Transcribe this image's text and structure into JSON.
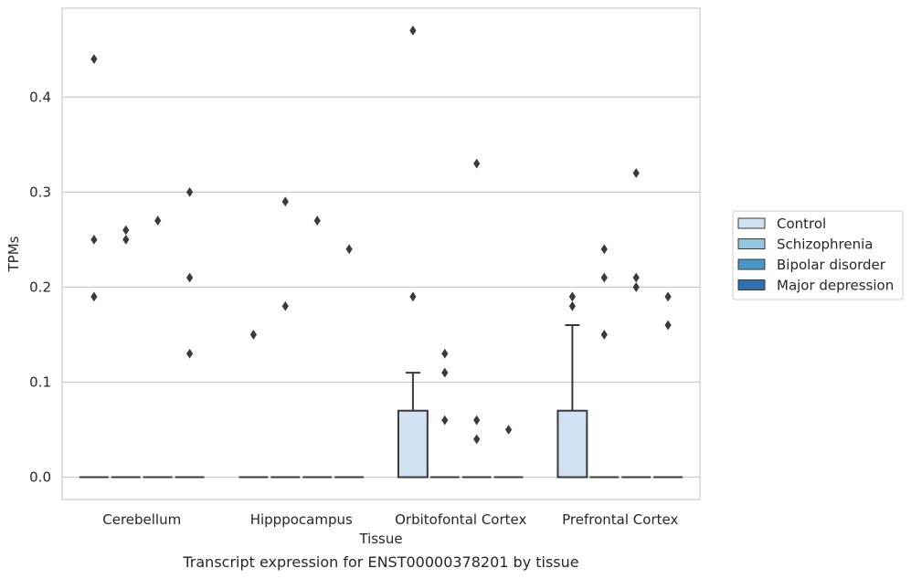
{
  "chart_data": {
    "type": "box",
    "caption": "Transcript expression for ENST00000378201 by tissue",
    "xlabel": "Tissue",
    "ylabel": "TPMs",
    "ylim": [
      -0.0235,
      0.4935
    ],
    "yticks": [
      0.0,
      0.1,
      0.2,
      0.3,
      0.4
    ],
    "ytick_labels": [
      "0.0",
      "0.1",
      "0.2",
      "0.3",
      "0.4"
    ],
    "grid": "horizontal",
    "legend_position": "right",
    "categories": [
      "Cerebellum",
      "Hipppocampus",
      "Orbitofontal Cortex",
      "Prefrontal Cortex"
    ],
    "series": [
      {
        "name": "Control",
        "color": "#d0e1f2",
        "boxes": [
          {
            "q1": 0,
            "median": 0,
            "q3": 0,
            "whisker_low": 0,
            "whisker_high": 0,
            "outliers": [
              0.44,
              0.25,
              0.19
            ]
          },
          {
            "q1": 0,
            "median": 0,
            "q3": 0,
            "whisker_low": 0,
            "whisker_high": 0,
            "outliers": [
              0.15
            ]
          },
          {
            "q1": 0,
            "median": 0,
            "q3": 0.07,
            "whisker_low": 0,
            "whisker_high": 0.11,
            "outliers": [
              0.47,
              0.19
            ]
          },
          {
            "q1": 0,
            "median": 0,
            "q3": 0.07,
            "whisker_low": 0,
            "whisker_high": 0.16,
            "outliers": [
              0.19,
              0.18
            ]
          }
        ]
      },
      {
        "name": "Schizophrenia",
        "color": "#94c4df",
        "boxes": [
          {
            "q1": 0,
            "median": 0,
            "q3": 0,
            "whisker_low": 0,
            "whisker_high": 0,
            "outliers": [
              0.26,
              0.25
            ]
          },
          {
            "q1": 0,
            "median": 0,
            "q3": 0,
            "whisker_low": 0,
            "whisker_high": 0,
            "outliers": [
              0.29,
              0.18
            ]
          },
          {
            "q1": 0,
            "median": 0,
            "q3": 0,
            "whisker_low": 0,
            "whisker_high": 0,
            "outliers": [
              0.13,
              0.11,
              0.06
            ]
          },
          {
            "q1": 0,
            "median": 0,
            "q3": 0,
            "whisker_low": 0,
            "whisker_high": 0,
            "outliers": [
              0.24,
              0.21,
              0.15
            ]
          }
        ]
      },
      {
        "name": "Bipolar disorder",
        "color": "#4a98c9",
        "boxes": [
          {
            "q1": 0,
            "median": 0,
            "q3": 0,
            "whisker_low": 0,
            "whisker_high": 0,
            "outliers": [
              0.27
            ]
          },
          {
            "q1": 0,
            "median": 0,
            "q3": 0,
            "whisker_low": 0,
            "whisker_high": 0,
            "outliers": [
              0.27
            ]
          },
          {
            "q1": 0,
            "median": 0,
            "q3": 0,
            "whisker_low": 0,
            "whisker_high": 0,
            "outliers": [
              0.33,
              0.06,
              0.04
            ]
          },
          {
            "q1": 0,
            "median": 0,
            "q3": 0,
            "whisker_low": 0,
            "whisker_high": 0,
            "outliers": [
              0.32,
              0.21,
              0.2
            ]
          }
        ]
      },
      {
        "name": "Major depression",
        "color": "#2e6fad",
        "boxes": [
          {
            "q1": 0,
            "median": 0,
            "q3": 0,
            "whisker_low": 0,
            "whisker_high": 0,
            "outliers": [
              0.3,
              0.21,
              0.13
            ]
          },
          {
            "q1": 0,
            "median": 0,
            "q3": 0,
            "whisker_low": 0,
            "whisker_high": 0,
            "outliers": [
              0.24
            ]
          },
          {
            "q1": 0,
            "median": 0,
            "q3": 0,
            "whisker_low": 0,
            "whisker_high": 0,
            "outliers": [
              0.05
            ]
          },
          {
            "q1": 0,
            "median": 0,
            "q3": 0,
            "whisker_low": 0,
            "whisker_high": 0,
            "outliers": [
              0.19,
              0.16
            ]
          }
        ]
      }
    ]
  }
}
